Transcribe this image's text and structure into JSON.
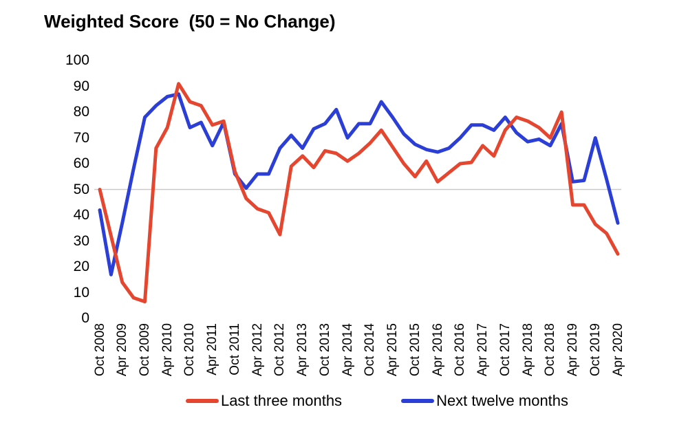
{
  "title": "Weighted Score  (50 = No Change)",
  "colors": {
    "red": "#E5462F",
    "blue": "#2B3ED6",
    "reference_line": "#C9C9C9",
    "text": "#000000",
    "background": "#FFFFFF"
  },
  "legend": [
    {
      "label": "Last three months",
      "color_key": "red"
    },
    {
      "label": "Next twelve months",
      "color_key": "blue"
    }
  ],
  "chart_data": {
    "type": "line",
    "title": "Weighted Score  (50 = No Change)",
    "xlabel": "",
    "ylabel": "",
    "ylim": [
      0,
      100
    ],
    "y_ticks": [
      0,
      10,
      20,
      30,
      40,
      50,
      60,
      70,
      80,
      90,
      100
    ],
    "reference_line_y": 50,
    "grid": "off",
    "legend_position": "bottom",
    "x": [
      "Oct 2008",
      "Jan 2009",
      "Apr 2009",
      "Jul 2009",
      "Oct 2009",
      "Jan 2010",
      "Apr 2010",
      "Jul 2010",
      "Oct 2010",
      "Jan 2011",
      "Apr 2011",
      "Jul 2011",
      "Oct 2011",
      "Jan 2012",
      "Apr 2012",
      "Jul 2012",
      "Oct 2012",
      "Jan 2013",
      "Apr 2013",
      "Jul 2013",
      "Oct 2013",
      "Jan 2014",
      "Apr 2014",
      "Jul 2014",
      "Oct 2014",
      "Jan 2015",
      "Apr 2015",
      "Jul 2015",
      "Oct 2015",
      "Jan 2016",
      "Apr 2016",
      "Jul 2016",
      "Oct 2016",
      "Jan 2017",
      "Apr 2017",
      "Jul 2017",
      "Oct 2017",
      "Jan 2018",
      "Apr 2018",
      "Jul 2018",
      "Oct 2018",
      "Jan 2019",
      "Apr 2019",
      "Jul 2019",
      "Oct 2019",
      "Jan 2020",
      "Apr 2020"
    ],
    "x_tick_labels": [
      "Oct 2008",
      "Apr 2009",
      "Oct 2009",
      "Apr 2010",
      "Oct 2010",
      "Apr 2011",
      "Oct 2011",
      "Apr 2012",
      "Oct 2012",
      "Apr 2013",
      "Oct 2013",
      "Apr 2014",
      "Oct 2014",
      "Apr 2015",
      "Oct 2015",
      "Apr 2016",
      "Oct 2016",
      "Apr 2017",
      "Oct 2017",
      "Apr 2018",
      "Oct 2018",
      "Apr 2019",
      "Oct 2019",
      "Apr 2020"
    ],
    "series": [
      {
        "name": "Last three months",
        "color_key": "red",
        "values": [
          50,
          32,
          14,
          8,
          6.5,
          66,
          74,
          91,
          84,
          82.5,
          75,
          76.5,
          57,
          46.5,
          42.5,
          41,
          32.5,
          59,
          63,
          58.5,
          65,
          64,
          61,
          64,
          68,
          73,
          66.5,
          60,
          55,
          61,
          53,
          56.5,
          60,
          60.5,
          67,
          63,
          73,
          78,
          76.5,
          74,
          70,
          80,
          44,
          44,
          36.5,
          33,
          25
        ]
      },
      {
        "name": "Next twelve months",
        "color_key": "blue",
        "values": [
          42,
          17,
          37,
          58,
          78,
          82.5,
          86,
          87,
          74,
          76,
          67,
          76,
          56,
          50.5,
          56,
          56,
          66,
          71,
          66,
          73.5,
          75.5,
          81,
          70,
          75.5,
          75.5,
          84,
          78,
          71.5,
          67.5,
          65.5,
          64.5,
          66,
          70,
          75,
          75,
          73,
          78,
          72,
          68.5,
          69.5,
          67,
          75.5,
          53,
          53.5,
          70,
          54,
          37
        ]
      }
    ]
  }
}
